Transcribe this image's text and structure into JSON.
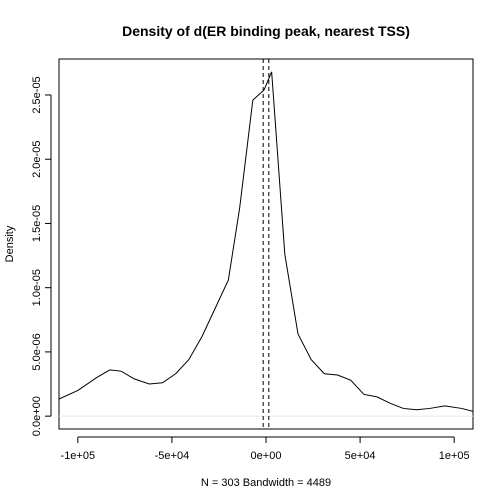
{
  "chart_data": {
    "type": "line",
    "title": "Density of d(ER binding peak, nearest TSS)",
    "xlabel": "N = 303   Bandwidth = 4489",
    "ylabel": "Density",
    "xlim": [
      -110000,
      110000
    ],
    "ylim": [
      -1e-06,
      2.78e-05
    ],
    "x_ticks": [
      -100000,
      -50000,
      0,
      50000,
      100000
    ],
    "x_tick_labels": [
      "-1e+05",
      "-5e+04",
      "0e+00",
      "5e+04",
      "1e+05"
    ],
    "y_ticks": [
      0,
      5e-06,
      1e-05,
      1.5e-05,
      2e-05,
      2.5e-05
    ],
    "y_tick_labels": [
      "0.0e+00",
      "5.0e-06",
      "1.0e-05",
      "1.5e-05",
      "2.0e-05",
      "2.5e-05"
    ],
    "vlines": [
      -1500,
      1500
    ],
    "series": [
      {
        "x": [
          -112000,
          -100000,
          -90000,
          -83000,
          -77000,
          -70000,
          -62000,
          -55000,
          -48000,
          -41000,
          -34000,
          -27000,
          -20000,
          -14000,
          -7000,
          -1000,
          3000,
          10000,
          17000,
          24000,
          31000,
          38000,
          45000,
          52000,
          59000,
          66000,
          73000,
          80000,
          87000,
          95000,
          104000,
          112000
        ],
        "y": [
          1.2e-06,
          2e-06,
          3e-06,
          3.6e-06,
          3.5e-06,
          2.9e-06,
          2.5e-06,
          2.6e-06,
          3.3e-06,
          4.4e-06,
          6.2e-06,
          8.4e-06,
          1.06e-05,
          1.62e-05,
          2.46e-05,
          2.54e-05,
          2.68e-05,
          1.26e-05,
          6.4e-06,
          4.4e-06,
          3.3e-06,
          3.2e-06,
          2.8e-06,
          1.7e-06,
          1.5e-06,
          1e-06,
          6e-07,
          5e-07,
          6e-07,
          8e-07,
          6e-07,
          3e-07
        ]
      }
    ],
    "grid": false,
    "legend": "none",
    "line_color": "#000000",
    "vline_style": "dashed"
  }
}
